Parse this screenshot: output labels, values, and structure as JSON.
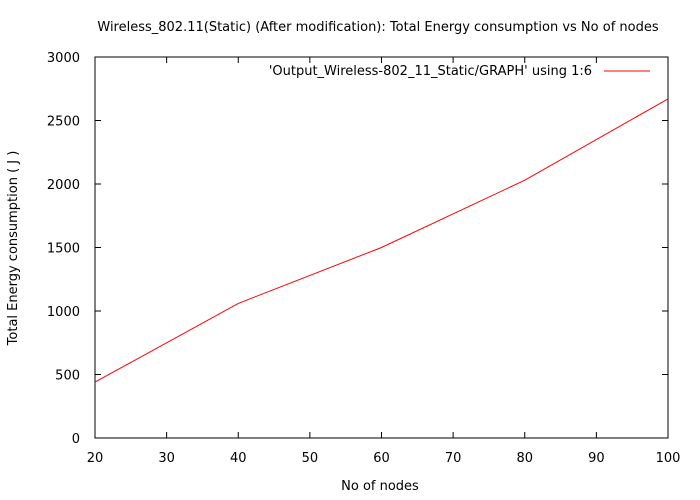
{
  "chart_data": {
    "type": "line",
    "title": "Wireless_802.11(Static) (After modification): Total Energy consumption vs No of nodes",
    "xlabel": "No of nodes",
    "ylabel": "Total Energy consumption ( J )",
    "xlim": [
      20,
      100
    ],
    "ylim": [
      0,
      3000
    ],
    "xticks": [
      20,
      30,
      40,
      50,
      60,
      70,
      80,
      90,
      100
    ],
    "yticks": [
      0,
      500,
      1000,
      1500,
      2000,
      2500,
      3000
    ],
    "grid": false,
    "legend_position": "top-right",
    "series": [
      {
        "name": "'Output_Wireless-802_11_Static/GRAPH' using 1:6",
        "color": "#ff0000",
        "x": [
          20,
          40,
          60,
          80,
          100
        ],
        "y": [
          440,
          1060,
          1500,
          2030,
          2670
        ]
      }
    ]
  }
}
